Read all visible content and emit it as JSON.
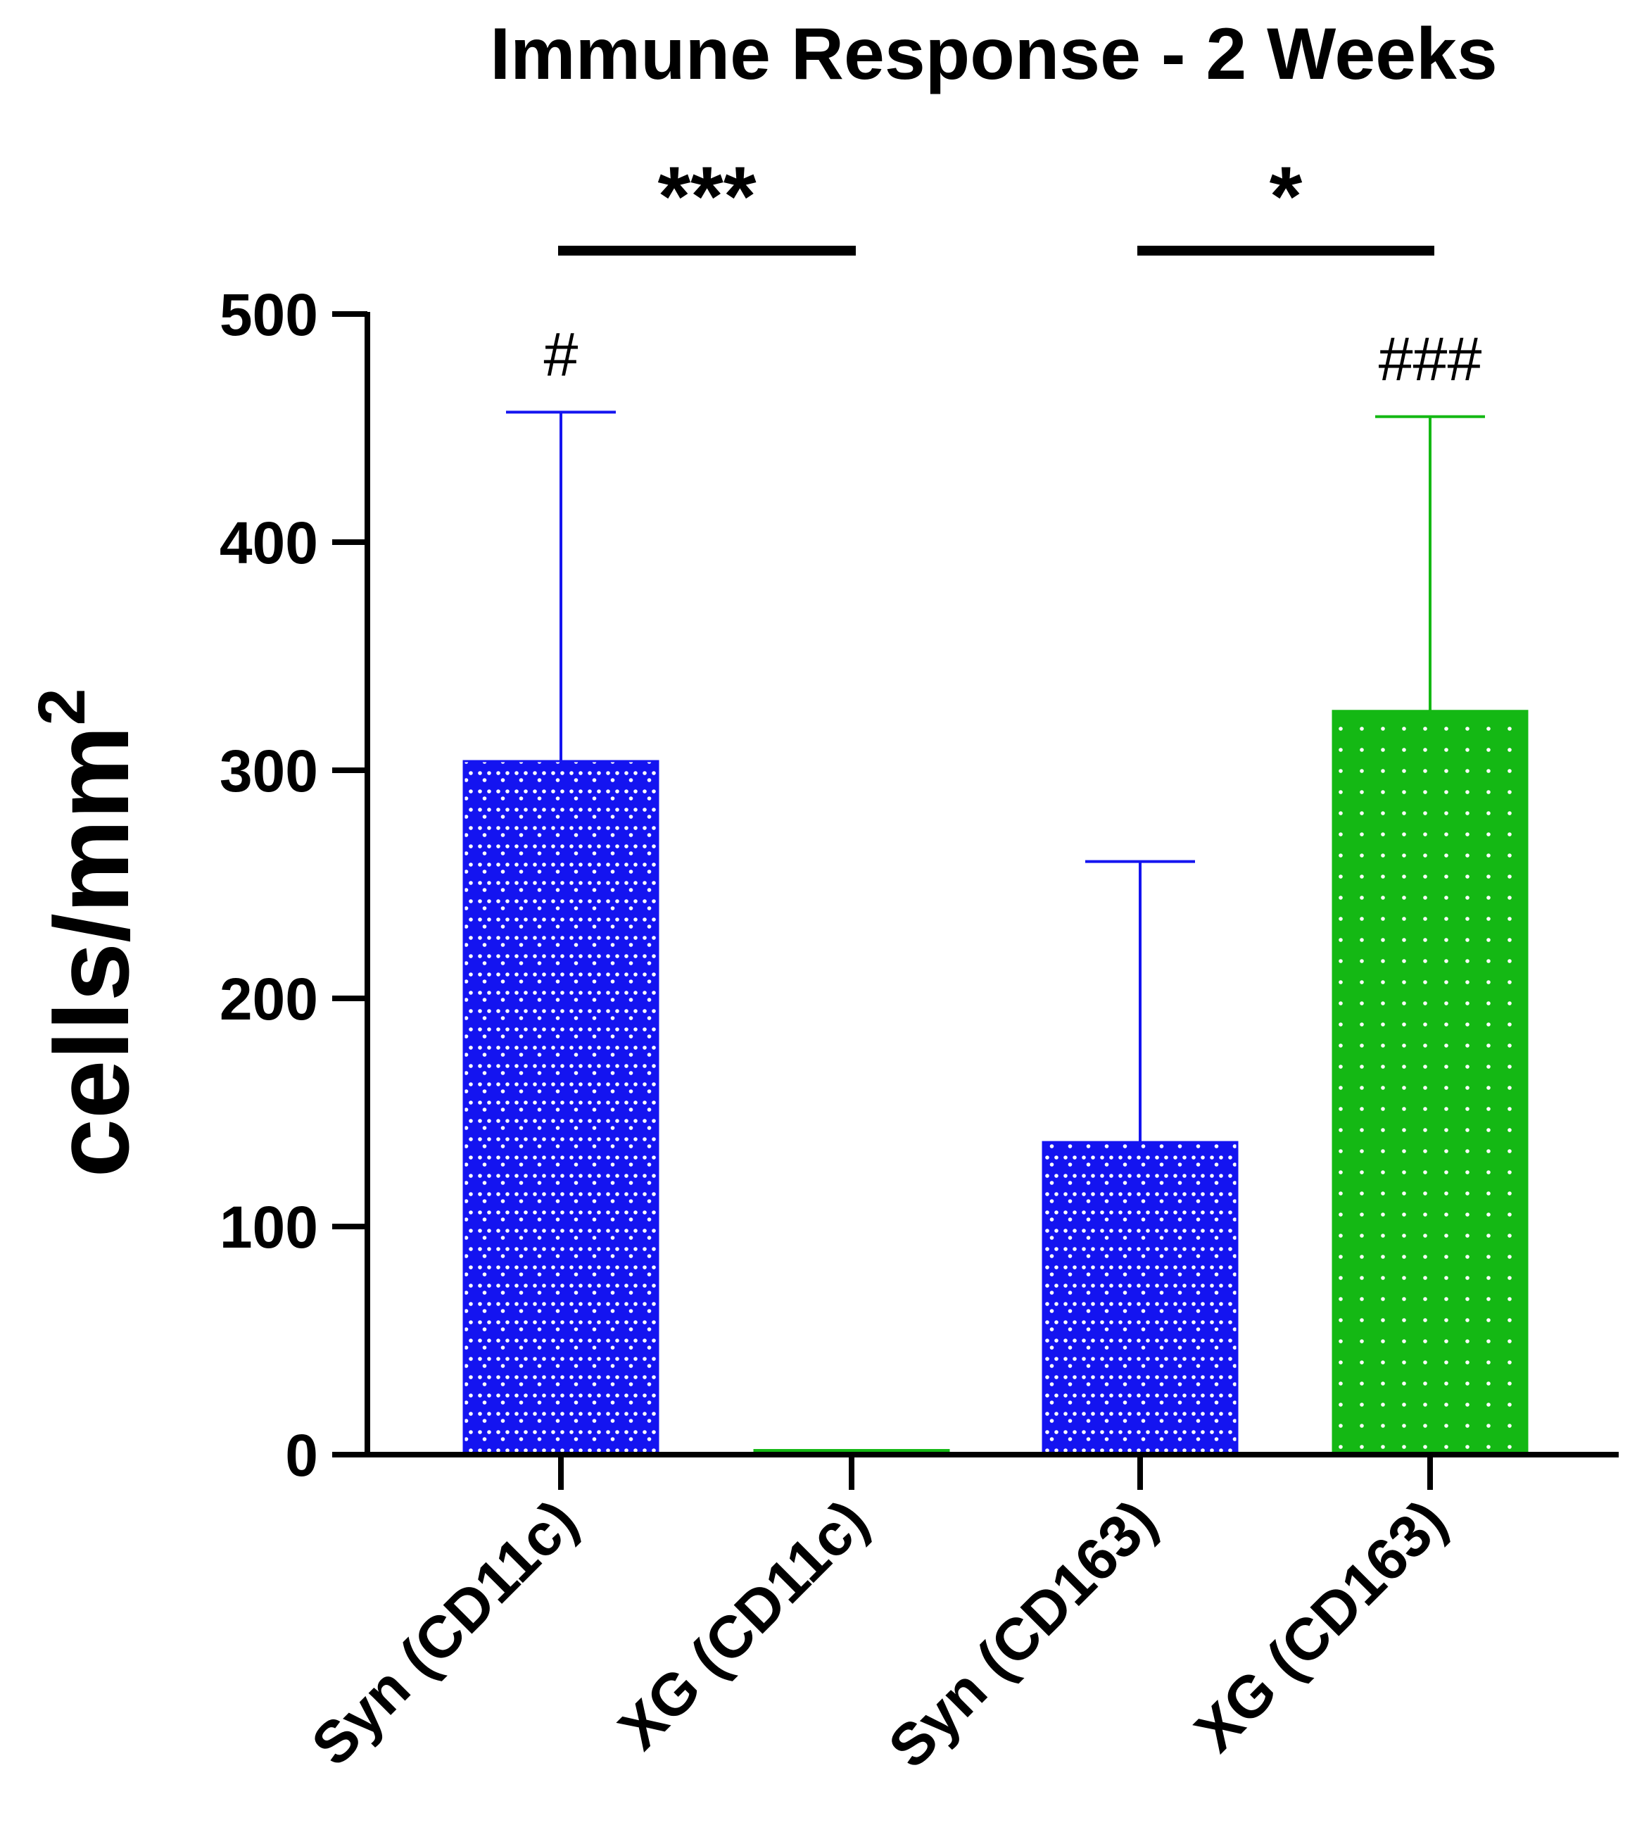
{
  "chart_data": {
    "type": "bar",
    "title": "Immune Response - 2 Weeks",
    "xlabel": "",
    "ylabel": "cells/mm",
    "ylabel_superscript": "2",
    "ylim": [
      0,
      500
    ],
    "yticks": [
      0,
      100,
      200,
      300,
      400,
      500
    ],
    "categories": [
      "Syn (CD11c)",
      "XG (CD11c)",
      "Syn (CD163)",
      "XG (CD163)"
    ],
    "values": [
      304,
      2,
      137,
      326
    ],
    "error_upper": [
      457,
      2,
      260,
      455
    ],
    "colors": [
      "#1414f0",
      "#14b814",
      "#1414f0",
      "#14b814"
    ],
    "patterns": [
      "dense-dots",
      "dots",
      "dense-dots",
      "dots"
    ],
    "bar_markers": [
      "#",
      "",
      "",
      "###"
    ],
    "significance": [
      {
        "from": 0,
        "to": 1,
        "label": "***"
      },
      {
        "from": 2,
        "to": 3,
        "label": "*"
      }
    ],
    "grid": false,
    "legend": "none"
  }
}
